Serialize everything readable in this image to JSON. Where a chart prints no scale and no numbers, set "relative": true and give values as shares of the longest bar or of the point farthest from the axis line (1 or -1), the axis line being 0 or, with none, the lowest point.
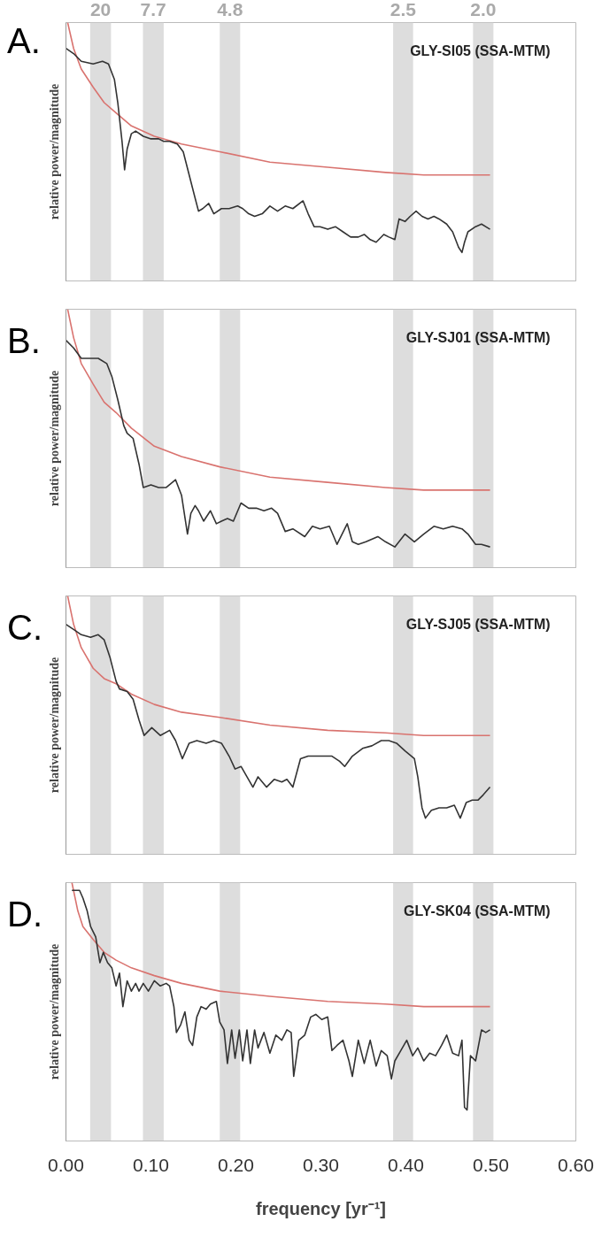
{
  "chart_data": [
    {
      "type": "line",
      "relative": true,
      "title": "A.",
      "annotations": [
        "GLY-SI05 (SSA-MTM)"
      ],
      "ylabel": "relative power/magnitude",
      "xlim": [
        0,
        0.6
      ],
      "tick_labels": false,
      "bands": [
        {
          "axis": "x",
          "from": 0.0285,
          "to": 0.053,
          "label": "20",
          "color": "#dddddd"
        },
        {
          "axis": "x",
          "from": 0.0906,
          "to": 0.115,
          "label": "7.7",
          "color": "#dddddd"
        },
        {
          "axis": "x",
          "from": 0.181,
          "to": 0.205,
          "label": "4.8",
          "color": "#dddddd"
        },
        {
          "axis": "x",
          "from": 0.385,
          "to": 0.4085,
          "label": "2.5",
          "color": "#dddddd"
        },
        {
          "axis": "x",
          "from": 0.479,
          "to": 0.503,
          "label": "2.0",
          "color": "#dddddd"
        }
      ],
      "series": [
        {
          "color": "#d9736f",
          "x": [
            0.002,
            0.009,
            0.018,
            0.032,
            0.045,
            0.059,
            0.077,
            0.104,
            0.136,
            0.181,
            0.24,
            0.308,
            0.376,
            0.421,
            0.499
          ],
          "values": [
            1.0,
            0.9,
            0.82,
            0.75,
            0.69,
            0.65,
            0.6,
            0.56,
            0.53,
            0.5,
            0.46,
            0.44,
            0.42,
            0.41,
            0.41
          ]
        },
        {
          "color": "#333333",
          "x": [
            0,
            0.009,
            0.018,
            0.032,
            0.043,
            0.05,
            0.057,
            0.061,
            0.066,
            0.069,
            0.072,
            0.077,
            0.082,
            0.091,
            0.1,
            0.109,
            0.115,
            0.122,
            0.131,
            0.138,
            0.145,
            0.152,
            0.156,
            0.161,
            0.168,
            0.174,
            0.183,
            0.192,
            0.202,
            0.208,
            0.215,
            0.222,
            0.231,
            0.24,
            0.249,
            0.258,
            0.267,
            0.279,
            0.285,
            0.292,
            0.299,
            0.308,
            0.317,
            0.326,
            0.335,
            0.344,
            0.351,
            0.358,
            0.365,
            0.374,
            0.38,
            0.387,
            0.392,
            0.399,
            0.405,
            0.412,
            0.419,
            0.426,
            0.433,
            0.439,
            0.448,
            0.455,
            0.462,
            0.466,
            0.469,
            0.473,
            0.482,
            0.489,
            0.499
          ],
          "values": [
            0.9,
            0.88,
            0.85,
            0.84,
            0.85,
            0.84,
            0.78,
            0.69,
            0.54,
            0.43,
            0.51,
            0.57,
            0.58,
            0.56,
            0.55,
            0.55,
            0.54,
            0.54,
            0.53,
            0.5,
            0.41,
            0.32,
            0.27,
            0.28,
            0.3,
            0.26,
            0.28,
            0.28,
            0.29,
            0.28,
            0.26,
            0.25,
            0.26,
            0.29,
            0.27,
            0.29,
            0.28,
            0.31,
            0.26,
            0.21,
            0.21,
            0.2,
            0.21,
            0.19,
            0.17,
            0.17,
            0.18,
            0.16,
            0.15,
            0.18,
            0.17,
            0.16,
            0.24,
            0.23,
            0.25,
            0.27,
            0.25,
            0.24,
            0.25,
            0.24,
            0.22,
            0.19,
            0.13,
            0.11,
            0.15,
            0.19,
            0.21,
            0.22,
            0.2
          ]
        }
      ]
    },
    {
      "type": "line",
      "relative": true,
      "title": "B.",
      "annotations": [
        "GLY-SJ01 (SSA-MTM)"
      ],
      "ylabel": "relative power/magnitude",
      "xlim": [
        0,
        0.6
      ],
      "tick_labels": false,
      "bands": [
        {
          "axis": "x",
          "from": 0.0285,
          "to": 0.053,
          "color": "#dddddd"
        },
        {
          "axis": "x",
          "from": 0.0906,
          "to": 0.115,
          "color": "#dddddd"
        },
        {
          "axis": "x",
          "from": 0.181,
          "to": 0.205,
          "color": "#dddddd"
        },
        {
          "axis": "x",
          "from": 0.385,
          "to": 0.4085,
          "color": "#dddddd"
        },
        {
          "axis": "x",
          "from": 0.479,
          "to": 0.503,
          "color": "#dddddd"
        }
      ],
      "series": [
        {
          "color": "#d9736f",
          "x": [
            0.002,
            0.009,
            0.018,
            0.032,
            0.045,
            0.059,
            0.077,
            0.104,
            0.136,
            0.181,
            0.24,
            0.308,
            0.376,
            0.421,
            0.499
          ],
          "values": [
            1.0,
            0.89,
            0.79,
            0.71,
            0.64,
            0.6,
            0.54,
            0.47,
            0.43,
            0.39,
            0.35,
            0.33,
            0.31,
            0.3,
            0.3
          ]
        },
        {
          "color": "#333333",
          "x": [
            0,
            0.009,
            0.018,
            0.027,
            0.038,
            0.048,
            0.054,
            0.061,
            0.068,
            0.072,
            0.079,
            0.086,
            0.091,
            0.1,
            0.109,
            0.118,
            0.129,
            0.136,
            0.143,
            0.147,
            0.152,
            0.156,
            0.162,
            0.17,
            0.177,
            0.183,
            0.19,
            0.197,
            0.206,
            0.215,
            0.224,
            0.233,
            0.242,
            0.249,
            0.258,
            0.267,
            0.281,
            0.29,
            0.299,
            0.31,
            0.319,
            0.331,
            0.337,
            0.344,
            0.353,
            0.367,
            0.376,
            0.387,
            0.399,
            0.41,
            0.421,
            0.433,
            0.444,
            0.455,
            0.466,
            0.473,
            0.482,
            0.489,
            0.499
          ],
          "values": [
            0.88,
            0.85,
            0.81,
            0.81,
            0.81,
            0.79,
            0.74,
            0.65,
            0.55,
            0.52,
            0.5,
            0.4,
            0.31,
            0.32,
            0.31,
            0.31,
            0.34,
            0.28,
            0.13,
            0.21,
            0.24,
            0.22,
            0.18,
            0.22,
            0.17,
            0.18,
            0.19,
            0.18,
            0.25,
            0.23,
            0.23,
            0.22,
            0.23,
            0.21,
            0.14,
            0.15,
            0.12,
            0.16,
            0.15,
            0.16,
            0.09,
            0.17,
            0.1,
            0.09,
            0.1,
            0.12,
            0.1,
            0.08,
            0.13,
            0.1,
            0.13,
            0.16,
            0.15,
            0.16,
            0.15,
            0.13,
            0.09,
            0.09,
            0.08
          ]
        }
      ]
    },
    {
      "type": "line",
      "relative": true,
      "title": "C.",
      "annotations": [
        "GLY-SJ05 (SSA-MTM)"
      ],
      "ylabel": "relative power/magnitude",
      "xlim": [
        0,
        0.6
      ],
      "tick_labels": false,
      "bands": [
        {
          "axis": "x",
          "from": 0.0285,
          "to": 0.053,
          "color": "#dddddd"
        },
        {
          "axis": "x",
          "from": 0.0906,
          "to": 0.115,
          "color": "#dddddd"
        },
        {
          "axis": "x",
          "from": 0.181,
          "to": 0.205,
          "color": "#dddddd"
        },
        {
          "axis": "x",
          "from": 0.385,
          "to": 0.4085,
          "color": "#dddddd"
        },
        {
          "axis": "x",
          "from": 0.479,
          "to": 0.503,
          "color": "#dddddd"
        }
      ],
      "series": [
        {
          "color": "#d9736f",
          "x": [
            0.002,
            0.009,
            0.018,
            0.032,
            0.045,
            0.059,
            0.077,
            0.104,
            0.136,
            0.181,
            0.24,
            0.308,
            0.376,
            0.421,
            0.499
          ],
          "values": [
            1.0,
            0.89,
            0.8,
            0.72,
            0.68,
            0.66,
            0.62,
            0.58,
            0.55,
            0.53,
            0.5,
            0.48,
            0.47,
            0.46,
            0.46
          ]
        },
        {
          "color": "#333333",
          "x": [
            0,
            0.009,
            0.018,
            0.029,
            0.038,
            0.045,
            0.052,
            0.059,
            0.063,
            0.072,
            0.079,
            0.086,
            0.092,
            0.101,
            0.111,
            0.122,
            0.129,
            0.137,
            0.145,
            0.154,
            0.165,
            0.174,
            0.183,
            0.192,
            0.199,
            0.206,
            0.213,
            0.22,
            0.226,
            0.236,
            0.245,
            0.254,
            0.26,
            0.267,
            0.276,
            0.285,
            0.299,
            0.313,
            0.322,
            0.328,
            0.337,
            0.349,
            0.36,
            0.371,
            0.38,
            0.389,
            0.399,
            0.41,
            0.414,
            0.419,
            0.423,
            0.43,
            0.439,
            0.448,
            0.457,
            0.464,
            0.471,
            0.478,
            0.485,
            0.491,
            0.499
          ],
          "values": [
            0.89,
            0.87,
            0.85,
            0.84,
            0.85,
            0.83,
            0.76,
            0.67,
            0.64,
            0.63,
            0.6,
            0.52,
            0.46,
            0.49,
            0.46,
            0.48,
            0.44,
            0.37,
            0.43,
            0.44,
            0.43,
            0.44,
            0.43,
            0.38,
            0.33,
            0.34,
            0.3,
            0.26,
            0.3,
            0.26,
            0.29,
            0.28,
            0.29,
            0.26,
            0.37,
            0.38,
            0.38,
            0.38,
            0.36,
            0.34,
            0.38,
            0.41,
            0.42,
            0.44,
            0.44,
            0.43,
            0.4,
            0.37,
            0.3,
            0.18,
            0.14,
            0.17,
            0.18,
            0.18,
            0.19,
            0.14,
            0.2,
            0.21,
            0.21,
            0.23,
            0.26
          ]
        }
      ]
    },
    {
      "type": "line",
      "relative": true,
      "title": "D.",
      "annotations": [
        "GLY-SK04 (SSA-MTM)"
      ],
      "ylabel": "relative power/magnitude",
      "xlabel": "frequency [yr⁻¹]",
      "xlim": [
        0,
        0.6
      ],
      "xticks": [
        {
          "value": 0,
          "label": "0.00"
        },
        {
          "value": 0.1,
          "label": "0.10"
        },
        {
          "value": 0.2,
          "label": "0.20"
        },
        {
          "value": 0.3,
          "label": "0.30"
        },
        {
          "value": 0.4,
          "label": "0.40"
        },
        {
          "value": 0.5,
          "label": "0.50"
        },
        {
          "value": 0.6,
          "label": "0.60"
        }
      ],
      "tick_labels": "x",
      "bands": [
        {
          "axis": "x",
          "from": 0.0285,
          "to": 0.053,
          "color": "#dddddd"
        },
        {
          "axis": "x",
          "from": 0.0906,
          "to": 0.115,
          "color": "#dddddd"
        },
        {
          "axis": "x",
          "from": 0.181,
          "to": 0.205,
          "color": "#dddddd"
        },
        {
          "axis": "x",
          "from": 0.385,
          "to": 0.4085,
          "color": "#dddddd"
        },
        {
          "axis": "x",
          "from": 0.479,
          "to": 0.503,
          "color": "#dddddd"
        }
      ],
      "series": [
        {
          "color": "#d9736f",
          "x": [
            0.007,
            0.014,
            0.02,
            0.032,
            0.045,
            0.059,
            0.077,
            0.104,
            0.136,
            0.181,
            0.24,
            0.308,
            0.376,
            0.421,
            0.499
          ],
          "values": [
            1.0,
            0.89,
            0.83,
            0.78,
            0.73,
            0.7,
            0.67,
            0.64,
            0.61,
            0.58,
            0.56,
            0.54,
            0.53,
            0.52,
            0.52
          ]
        },
        {
          "color": "#333333",
          "x": [
            0.007,
            0.011,
            0.016,
            0.02,
            0.025,
            0.029,
            0.035,
            0.04,
            0.044,
            0.049,
            0.054,
            0.059,
            0.063,
            0.067,
            0.072,
            0.077,
            0.082,
            0.086,
            0.091,
            0.097,
            0.104,
            0.111,
            0.118,
            0.122,
            0.127,
            0.13,
            0.135,
            0.14,
            0.145,
            0.149,
            0.154,
            0.159,
            0.165,
            0.17,
            0.177,
            0.181,
            0.186,
            0.19,
            0.195,
            0.199,
            0.204,
            0.208,
            0.213,
            0.217,
            0.222,
            0.226,
            0.233,
            0.24,
            0.247,
            0.254,
            0.26,
            0.265,
            0.268,
            0.274,
            0.281,
            0.288,
            0.294,
            0.301,
            0.308,
            0.313,
            0.319,
            0.326,
            0.333,
            0.337,
            0.344,
            0.351,
            0.358,
            0.365,
            0.371,
            0.378,
            0.383,
            0.387,
            0.394,
            0.401,
            0.408,
            0.414,
            0.421,
            0.428,
            0.435,
            0.442,
            0.448,
            0.455,
            0.462,
            0.466,
            0.469,
            0.472,
            0.476,
            0.482,
            0.489,
            0.494,
            0.499
          ],
          "values": [
            0.97,
            0.97,
            0.97,
            0.94,
            0.89,
            0.83,
            0.79,
            0.69,
            0.73,
            0.69,
            0.67,
            0.6,
            0.65,
            0.52,
            0.62,
            0.58,
            0.61,
            0.58,
            0.61,
            0.58,
            0.62,
            0.6,
            0.61,
            0.6,
            0.52,
            0.42,
            0.45,
            0.5,
            0.39,
            0.37,
            0.48,
            0.52,
            0.51,
            0.53,
            0.54,
            0.46,
            0.43,
            0.3,
            0.43,
            0.32,
            0.43,
            0.31,
            0.43,
            0.3,
            0.43,
            0.36,
            0.42,
            0.34,
            0.41,
            0.39,
            0.43,
            0.42,
            0.25,
            0.39,
            0.41,
            0.48,
            0.49,
            0.47,
            0.48,
            0.35,
            0.37,
            0.39,
            0.31,
            0.25,
            0.39,
            0.3,
            0.39,
            0.29,
            0.35,
            0.33,
            0.24,
            0.31,
            0.35,
            0.39,
            0.33,
            0.36,
            0.31,
            0.34,
            0.33,
            0.37,
            0.41,
            0.34,
            0.33,
            0.39,
            0.13,
            0.12,
            0.33,
            0.31,
            0.43,
            0.42,
            0.43
          ]
        }
      ]
    }
  ]
}
